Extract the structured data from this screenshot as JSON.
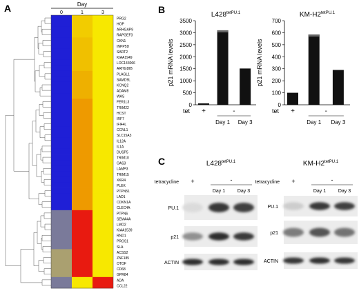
{
  "panel_labels": {
    "a": "A",
    "b": "B",
    "c": "C"
  },
  "heatmap": {
    "day_title": "Day",
    "columns": [
      "0",
      "1",
      "3"
    ],
    "genes": [
      {
        "name": "PRG2",
        "c": [
          "#1f1fd6",
          "#f2cc00",
          "#f7e800"
        ]
      },
      {
        "name": "HOP",
        "c": [
          "#1f1fd6",
          "#f2cc00",
          "#f7e800"
        ]
      },
      {
        "name": "ARHGAP9",
        "c": [
          "#1f1fd6",
          "#f2cc00",
          "#f7e800"
        ]
      },
      {
        "name": "RAPGEF3",
        "c": [
          "#1f1fd6",
          "#f2cc00",
          "#f7e800"
        ]
      },
      {
        "name": "CKN1",
        "c": [
          "#1f1fd6",
          "#f0c000",
          "#f7e800"
        ]
      },
      {
        "name": "INPP5D",
        "c": [
          "#1f1fd6",
          "#f0c000",
          "#f7e800"
        ]
      },
      {
        "name": "SART2",
        "c": [
          "#1f1fd6",
          "#f0c000",
          "#f7e800"
        ]
      },
      {
        "name": "KIAA1949",
        "c": [
          "#1f1fd6",
          "#f0c000",
          "#f7e800"
        ]
      },
      {
        "name": "LOC143066",
        "c": [
          "#1f1fd6",
          "#f0c000",
          "#f7e800"
        ]
      },
      {
        "name": "ARHGDIB",
        "c": [
          "#1f1fd6",
          "#f0c000",
          "#f7e800"
        ]
      },
      {
        "name": "PLAGL1",
        "c": [
          "#1f1fd6",
          "#eeb000",
          "#f7e800"
        ]
      },
      {
        "name": "SAMD9L",
        "c": [
          "#1f1fd6",
          "#eeb000",
          "#f7e800"
        ]
      },
      {
        "name": "KCNQ2",
        "c": [
          "#1f1fd6",
          "#eeb000",
          "#f7e800"
        ]
      },
      {
        "name": "ADAM8",
        "c": [
          "#1f1fd6",
          "#eeb000",
          "#f7e800"
        ]
      },
      {
        "name": "WAS",
        "c": [
          "#1f1fd6",
          "#eeb000",
          "#f7e800"
        ]
      },
      {
        "name": "FER1L3",
        "c": [
          "#1f1fd6",
          "#ee9a00",
          "#f7e800"
        ]
      },
      {
        "name": "TRIM22",
        "c": [
          "#1f1fd6",
          "#ee9a00",
          "#f7e800"
        ]
      },
      {
        "name": "HCST",
        "c": [
          "#1f1fd6",
          "#ee9a00",
          "#f7e800"
        ]
      },
      {
        "name": "IRF7",
        "c": [
          "#1f1fd6",
          "#ee9a00",
          "#f7e800"
        ]
      },
      {
        "name": "IFI44L",
        "c": [
          "#1f1fd6",
          "#ee9a00",
          "#f7e800"
        ]
      },
      {
        "name": "CCNL1",
        "c": [
          "#1f1fd6",
          "#ee9a00",
          "#f7e800"
        ]
      },
      {
        "name": "SLC15A3",
        "c": [
          "#1f1fd6",
          "#ee9a00",
          "#f7e800"
        ]
      },
      {
        "name": "IL12A",
        "c": [
          "#1f1fd6",
          "#ee9a00",
          "#f7e800"
        ]
      },
      {
        "name": "IL1A",
        "c": [
          "#1f1fd6",
          "#ee9a00",
          "#f7e800"
        ]
      },
      {
        "name": "DUSP5",
        "c": [
          "#1f1fd6",
          "#ee9a00",
          "#f7e800"
        ]
      },
      {
        "name": "TRIM10",
        "c": [
          "#1f1fd6",
          "#ee9a00",
          "#f7e800"
        ]
      },
      {
        "name": "OAS3",
        "c": [
          "#1f1fd6",
          "#ee9a00",
          "#f7e800"
        ]
      },
      {
        "name": "LAMP3",
        "c": [
          "#1f1fd6",
          "#ee9a00",
          "#f7e800"
        ]
      },
      {
        "name": "TRIM15",
        "c": [
          "#1f1fd6",
          "#ee9a00",
          "#f7e800"
        ]
      },
      {
        "name": "XKR4",
        "c": [
          "#1f1fd6",
          "#ee9a00",
          "#f7e800"
        ]
      },
      {
        "name": "PLEK",
        "c": [
          "#1f1fd6",
          "#ee9a00",
          "#f7e800"
        ]
      },
      {
        "name": "PTPN51",
        "c": [
          "#1f1fd6",
          "#ee9a00",
          "#f7e800"
        ]
      },
      {
        "name": "LAD1",
        "c": [
          "#1f1fd6",
          "#ee9a00",
          "#f7e800"
        ]
      },
      {
        "name": "CDKN1A",
        "c": [
          "#1f1fd6",
          "#ee9a00",
          "#f7e800"
        ]
      },
      {
        "name": "CLEC4A",
        "c": [
          "#1f1fd6",
          "#ee9a00",
          "#f7e800"
        ]
      },
      {
        "name": "PTPN6",
        "c": [
          "#7a7a9a",
          "#e81a10",
          "#f7e800"
        ]
      },
      {
        "name": "SEMA4A",
        "c": [
          "#7a7a9a",
          "#e81a10",
          "#f7e800"
        ]
      },
      {
        "name": "LMO2",
        "c": [
          "#7a7a9a",
          "#e81a10",
          "#f7e800"
        ]
      },
      {
        "name": "KIAA1539",
        "c": [
          "#7a7a9a",
          "#e81a10",
          "#f7e800"
        ]
      },
      {
        "name": "RND1",
        "c": [
          "#7a7a9a",
          "#e81a10",
          "#f7e800"
        ]
      },
      {
        "name": "PROS1",
        "c": [
          "#7a7a9a",
          "#e81a10",
          "#f7e800"
        ]
      },
      {
        "name": "SLA",
        "c": [
          "#7a7a9a",
          "#e81a10",
          "#f7e800"
        ]
      },
      {
        "name": "ACSS2",
        "c": [
          "#aaa070",
          "#e81a10",
          "#f7e800"
        ]
      },
      {
        "name": "ZNF185",
        "c": [
          "#aaa070",
          "#e81a10",
          "#f7e800"
        ]
      },
      {
        "name": "OTOF",
        "c": [
          "#aaa070",
          "#e81a10",
          "#f7e800"
        ]
      },
      {
        "name": "CD68",
        "c": [
          "#aaa070",
          "#e81a10",
          "#f7e800"
        ]
      },
      {
        "name": "GPR84",
        "c": [
          "#aaa070",
          "#e81a10",
          "#f7e800"
        ]
      },
      {
        "name": "ADA",
        "c": [
          "#7a7a9a",
          "#f7e800",
          "#e81a10"
        ]
      },
      {
        "name": "CCL22",
        "c": [
          "#7a7a9a",
          "#f7e800",
          "#e81a10"
        ]
      }
    ]
  },
  "chart_data": [
    {
      "type": "bar",
      "title": "L428",
      "title_sup": "tetPU.1",
      "ylabel": "p21 mRNA  levels",
      "ylim": [
        0,
        3500
      ],
      "yticks": [
        0,
        500,
        1000,
        1500,
        2000,
        2500,
        3000,
        3500
      ],
      "tet_label": "tet",
      "tet_values": [
        "+",
        "-"
      ],
      "categories": [
        "",
        "Day 1",
        "Day 3"
      ],
      "values": [
        60,
        3100,
        1510
      ]
    },
    {
      "type": "bar",
      "title": "KM-H2",
      "title_sup": "tetPU.1",
      "ylabel": "p21 mRNA  levels",
      "ylim": [
        0,
        700
      ],
      "yticks": [
        0,
        100,
        200,
        300,
        400,
        500,
        600,
        700
      ],
      "tet_label": "tet",
      "tet_values": [
        "+",
        "-"
      ],
      "categories": [
        "",
        "Day 1",
        "Day 3"
      ],
      "values": [
        100,
        585,
        290
      ]
    }
  ],
  "blots": [
    {
      "title": "L428",
      "title_sup": "tetPU.1",
      "treatment_label": "tetracycline",
      "plus": "+",
      "minus": "-",
      "lanes": [
        "Day 1",
        "Day 3"
      ],
      "rows": [
        {
          "label": "PU.1",
          "intensity": [
            0.08,
            0.9,
            0.85
          ]
        },
        {
          "label": "p21",
          "intensity": [
            0.45,
            0.95,
            0.88
          ]
        },
        {
          "label": "ACTIN",
          "intensity": [
            0.95,
            0.95,
            0.95
          ]
        }
      ]
    },
    {
      "title": "KM-H2",
      "title_sup": "tetPU.1",
      "treatment_label": "tetracycline",
      "plus": "+",
      "minus": "-",
      "lanes": [
        "Day 1",
        "Day 3"
      ],
      "rows": [
        {
          "label": "PU.1",
          "intensity": [
            0.15,
            0.9,
            0.85
          ]
        },
        {
          "label": "p21",
          "intensity": [
            0.55,
            0.75,
            0.6
          ]
        },
        {
          "label": "ACTIN",
          "intensity": [
            0.9,
            0.92,
            0.9
          ]
        }
      ]
    }
  ]
}
